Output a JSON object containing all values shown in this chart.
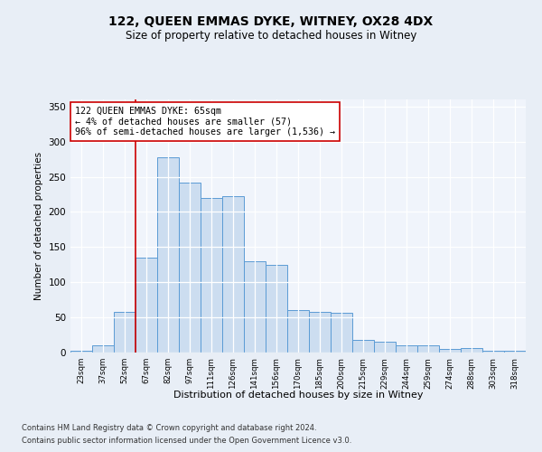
{
  "title1": "122, QUEEN EMMAS DYKE, WITNEY, OX28 4DX",
  "title2": "Size of property relative to detached houses in Witney",
  "xlabel": "Distribution of detached houses by size in Witney",
  "ylabel": "Number of detached properties",
  "categories": [
    "23sqm",
    "37sqm",
    "52sqm",
    "67sqm",
    "82sqm",
    "97sqm",
    "111sqm",
    "126sqm",
    "141sqm",
    "156sqm",
    "170sqm",
    "185sqm",
    "200sqm",
    "215sqm",
    "229sqm",
    "244sqm",
    "259sqm",
    "274sqm",
    "288sqm",
    "303sqm",
    "318sqm"
  ],
  "values": [
    3,
    10,
    58,
    135,
    278,
    242,
    220,
    222,
    130,
    125,
    60,
    58,
    56,
    18,
    16,
    10,
    10,
    5,
    6,
    3,
    2
  ],
  "bar_color": "#ccddf0",
  "bar_edge_color": "#5b9bd5",
  "vline_x": 3.0,
  "vline_color": "#cc0000",
  "annotation_text": "122 QUEEN EMMAS DYKE: 65sqm\n← 4% of detached houses are smaller (57)\n96% of semi-detached houses are larger (1,536) →",
  "annotation_box_color": "#ffffff",
  "annotation_border_color": "#cc0000",
  "ylim": [
    0,
    360
  ],
  "yticks": [
    0,
    50,
    100,
    150,
    200,
    250,
    300,
    350
  ],
  "footer1": "Contains HM Land Registry data © Crown copyright and database right 2024.",
  "footer2": "Contains public sector information licensed under the Open Government Licence v3.0.",
  "bg_color": "#e8eef6",
  "plot_bg_color": "#f0f4fb"
}
